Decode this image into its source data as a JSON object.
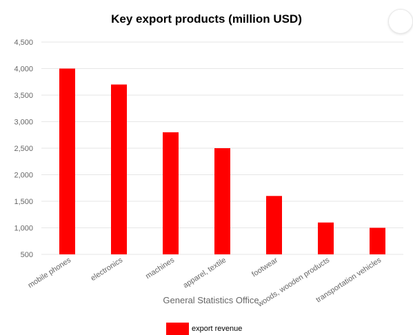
{
  "chart_data": {
    "type": "bar",
    "title": "Key export products (million USD)",
    "xlabel": "General Statistics Office",
    "ylabel": "",
    "categories": [
      "mobile phones",
      "electronics",
      "machines",
      "apparel, textile",
      "footwear",
      "woods, wooden products",
      "transportation vehicles"
    ],
    "series": [
      {
        "name": "export revenue",
        "values": [
          4000,
          3700,
          2800,
          2500,
          1600,
          1100,
          1000
        ]
      }
    ],
    "ylim": [
      500,
      4500
    ],
    "yticks": [
      500,
      1000,
      1500,
      2000,
      2500,
      3000,
      3500,
      4000,
      4500
    ],
    "grid": true,
    "legend_position": "bottom",
    "colors": {
      "bar": "#ff0000",
      "grid": "#e6e6e6",
      "tick_text": "#666666",
      "axis_title": "#666666"
    }
  }
}
